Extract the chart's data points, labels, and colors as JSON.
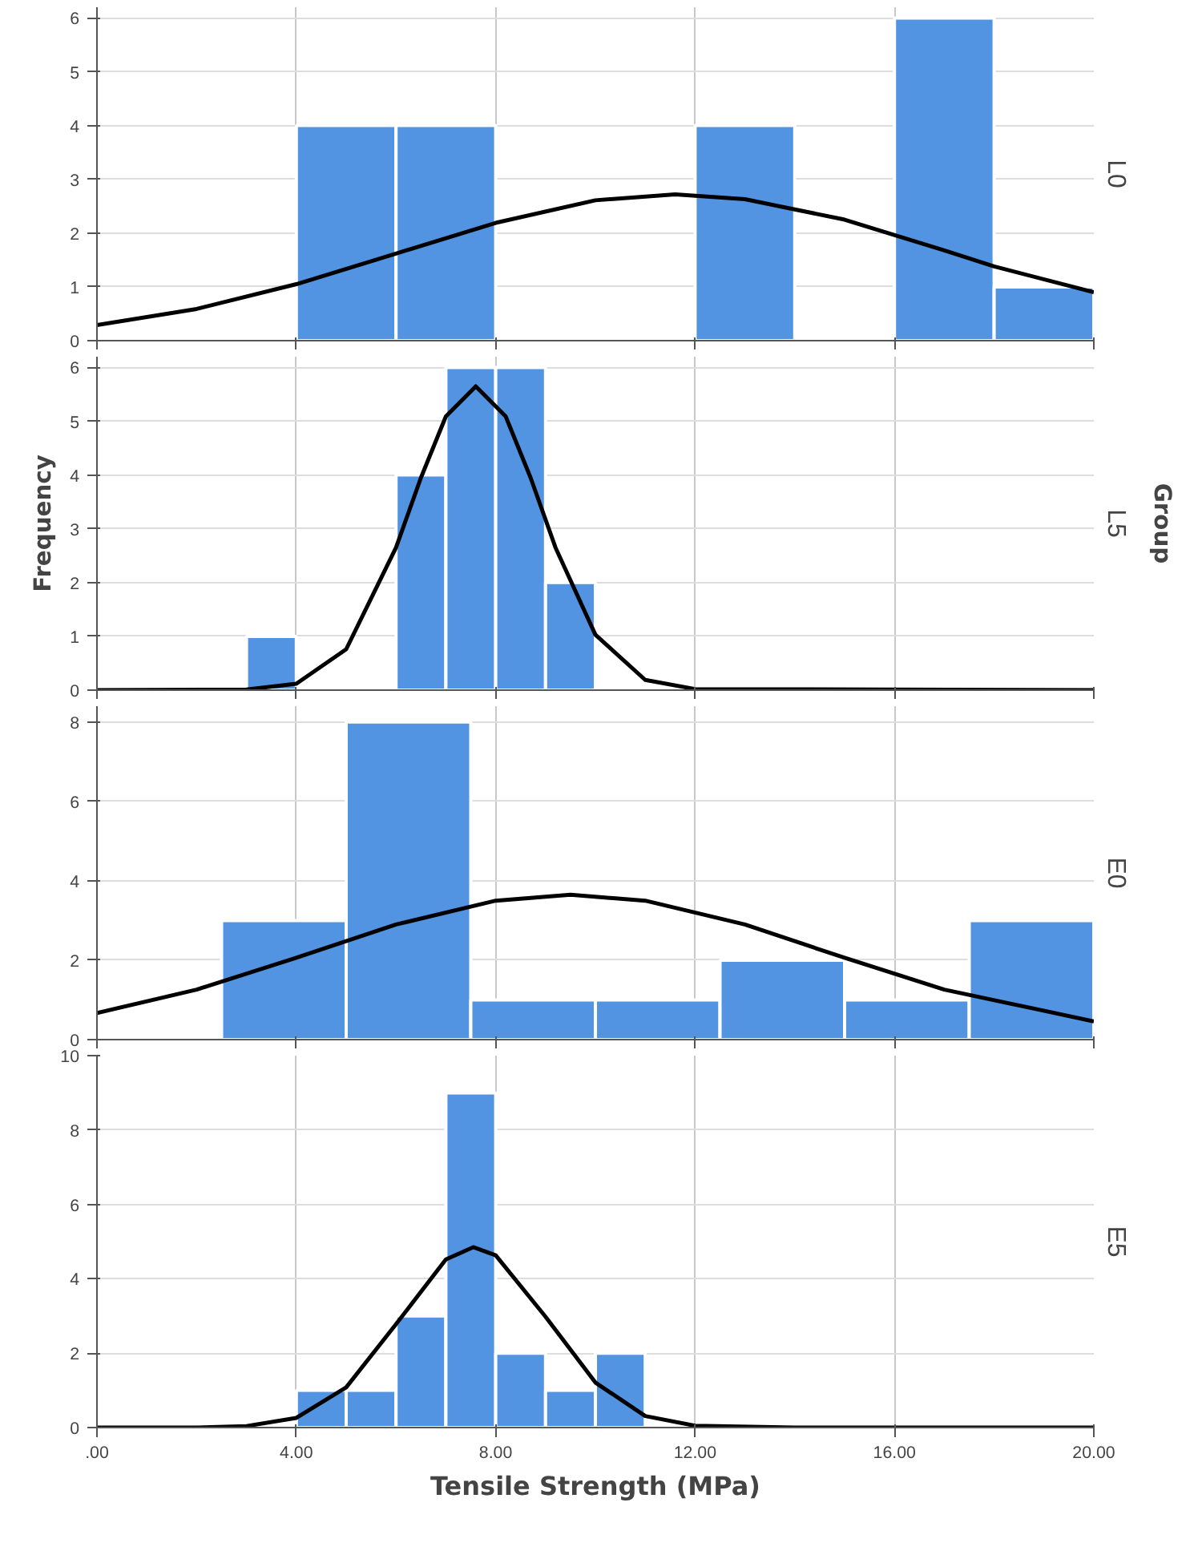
{
  "chart_data": [
    {
      "type": "histogram",
      "title": "L0",
      "bins": [
        0,
        2,
        4,
        6,
        8,
        10,
        12,
        14,
        16,
        18,
        20
      ],
      "values": [
        0,
        0,
        4,
        4,
        0,
        0,
        4,
        0,
        6,
        1
      ],
      "color": "#5294e2",
      "series": [
        {
          "type": "line",
          "color": "#000000",
          "x": [
            0,
            2,
            4,
            6,
            8,
            10,
            11.6,
            13,
            15,
            17,
            18,
            20
          ],
          "values": [
            0.29,
            0.59,
            1.05,
            1.62,
            2.19,
            2.61,
            2.72,
            2.63,
            2.25,
            1.68,
            1.38,
            0.9
          ]
        }
      ],
      "xlim": [
        0,
        20
      ],
      "xticks": [
        {
          "value": 0,
          "label": null
        },
        {
          "value": 4,
          "label": null
        },
        {
          "value": 8,
          "label": null
        },
        {
          "value": 12,
          "label": null
        },
        {
          "value": 16,
          "label": null
        },
        {
          "value": 20,
          "label": null
        }
      ],
      "ylim": [
        0,
        6.2
      ],
      "yticks": [
        0,
        1,
        2,
        3,
        4,
        5,
        6
      ],
      "grid": true,
      "tick_labels": "y"
    },
    {
      "type": "histogram",
      "title": "L5",
      "ylabel": "Frequency",
      "y2label": "Group",
      "bins": [
        3,
        4,
        5,
        6,
        7,
        8,
        9,
        10
      ],
      "values": [
        1,
        0,
        0,
        4,
        6,
        6,
        2
      ],
      "color": "#5294e2",
      "series": [
        {
          "type": "line",
          "color": "#000000",
          "x": [
            0,
            3,
            4,
            5,
            6,
            6.5,
            7,
            7.6,
            8.2,
            8.7,
            9.2,
            10,
            11,
            12,
            20
          ],
          "values": [
            0,
            0.01,
            0.12,
            0.76,
            2.65,
            3.95,
            5.09,
            5.65,
            5.09,
            3.95,
            2.65,
            1.03,
            0.19,
            0.02,
            0
          ]
        }
      ],
      "xlim": [
        0,
        20
      ],
      "xticks": [
        {
          "value": 0,
          "label": null
        },
        {
          "value": 4,
          "label": null
        },
        {
          "value": 8,
          "label": null
        },
        {
          "value": 12,
          "label": null
        },
        {
          "value": 16,
          "label": null
        },
        {
          "value": 20,
          "label": null
        }
      ],
      "ylim": [
        0,
        6.2
      ],
      "yticks": [
        0,
        1,
        2,
        3,
        4,
        5,
        6
      ],
      "grid": true,
      "tick_labels": "y"
    },
    {
      "type": "histogram",
      "title": "E0",
      "bins": [
        2.5,
        5,
        7.5,
        10,
        12.5,
        15,
        17.5,
        20
      ],
      "values": [
        3,
        8,
        1,
        1,
        2,
        1,
        3
      ],
      "color": "#5294e2",
      "series": [
        {
          "type": "line",
          "color": "#000000",
          "x": [
            0,
            2,
            4,
            6,
            8,
            9.5,
            11,
            13,
            15,
            17,
            20
          ],
          "values": [
            0.67,
            1.26,
            2.06,
            2.9,
            3.5,
            3.65,
            3.5,
            2.9,
            2.06,
            1.26,
            0.46
          ]
        }
      ],
      "xlim": [
        0,
        20
      ],
      "xticks": [
        {
          "value": 0,
          "label": null
        },
        {
          "value": 4,
          "label": null
        },
        {
          "value": 8,
          "label": null
        },
        {
          "value": 12,
          "label": null
        },
        {
          "value": 16,
          "label": null
        },
        {
          "value": 20,
          "label": null
        }
      ],
      "ylim": [
        0,
        8.4
      ],
      "yticks": [
        0,
        2,
        4,
        6,
        8
      ],
      "grid": true,
      "tick_labels": "y"
    },
    {
      "type": "histogram",
      "title": "E5",
      "xlabel": "Tensile Strength (MPa)",
      "bins": [
        4,
        5,
        6,
        7,
        8,
        9,
        10,
        11
      ],
      "values": [
        1,
        1,
        3,
        9,
        2,
        1,
        2
      ],
      "color": "#5294e2",
      "series": [
        {
          "type": "line",
          "color": "#000000",
          "x": [
            0,
            2,
            3,
            4,
            5,
            6,
            7,
            7.55,
            8,
            9,
            10,
            11,
            12,
            14,
            20
          ],
          "values": [
            0,
            0,
            0.04,
            0.26,
            1.08,
            2.78,
            4.52,
            4.85,
            4.63,
            2.98,
            1.21,
            0.31,
            0.05,
            0,
            0
          ]
        }
      ],
      "xlim": [
        0,
        20
      ],
      "xticks": [
        {
          "value": 0,
          "label": ".00"
        },
        {
          "value": 4,
          "label": "4.00"
        },
        {
          "value": 8,
          "label": "8.00"
        },
        {
          "value": 12,
          "label": "12.00"
        },
        {
          "value": 16,
          "label": "16.00"
        },
        {
          "value": 20,
          "label": "20.00"
        }
      ],
      "ylim": [
        0,
        10
      ],
      "yticks": [
        0,
        2,
        4,
        6,
        8,
        10
      ],
      "grid": true
    }
  ]
}
